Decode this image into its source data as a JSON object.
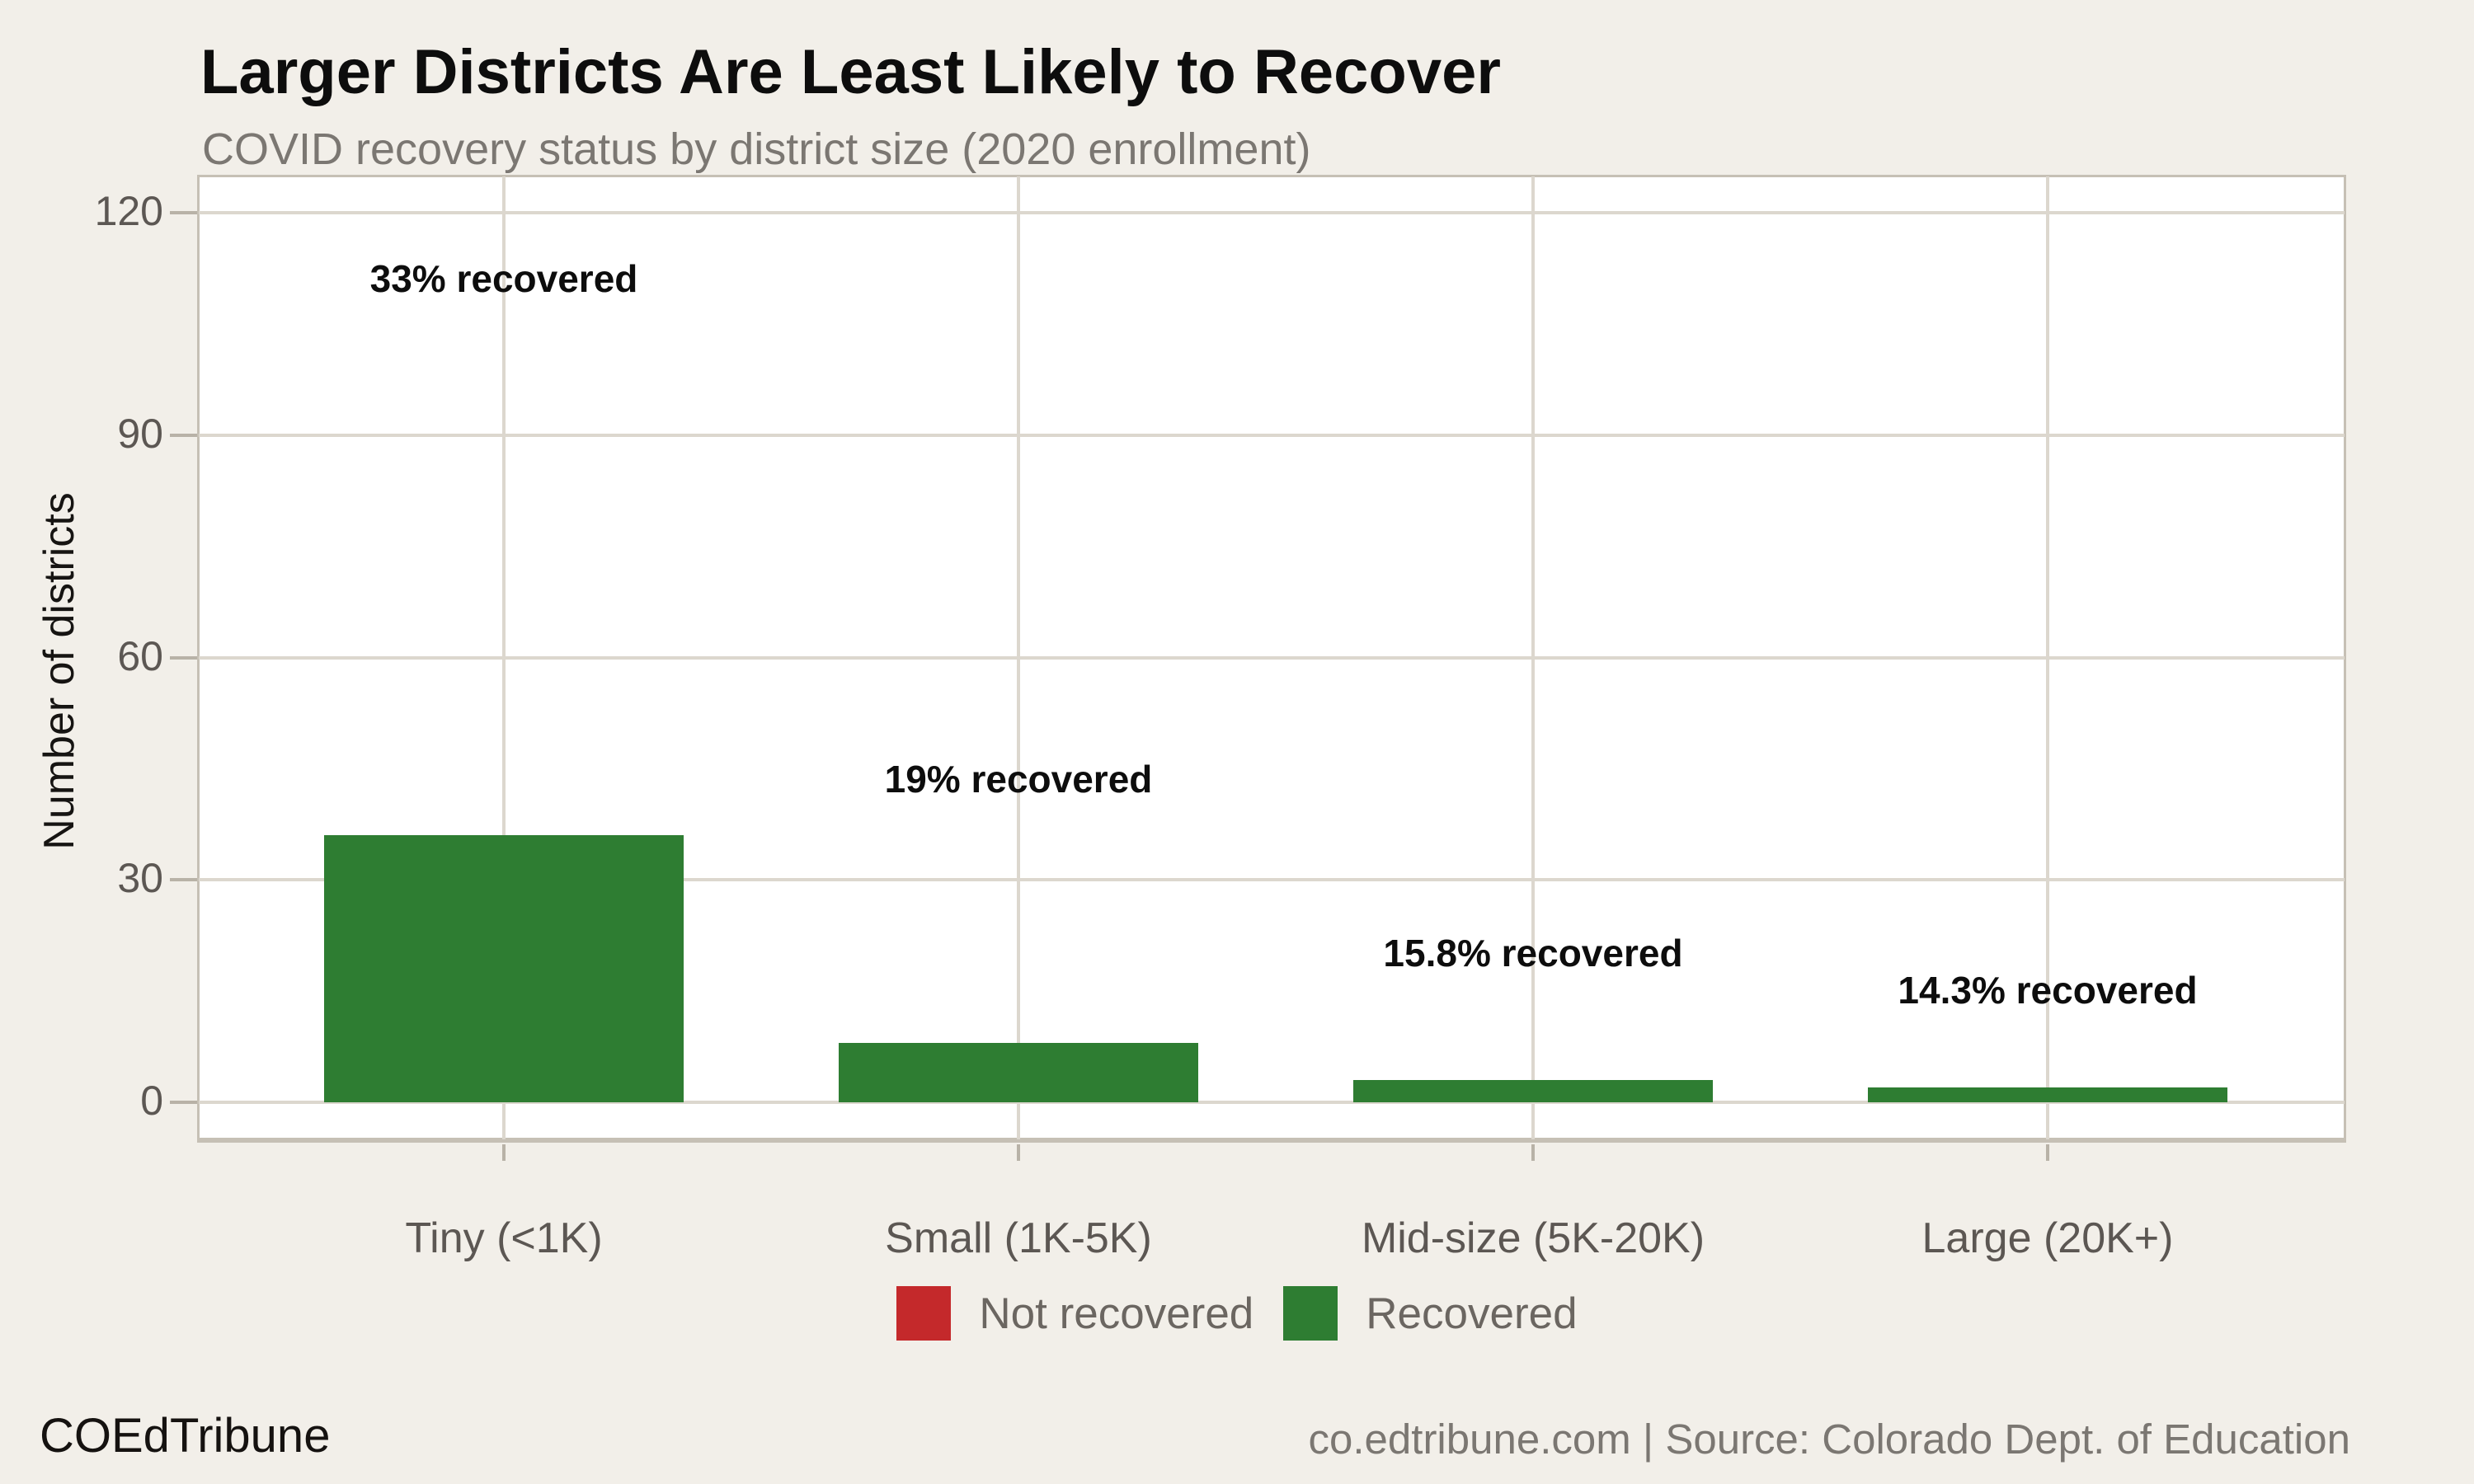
{
  "header": {
    "title": "Larger Districts Are Least Likely to Recover",
    "subtitle": "COVID recovery status by district size (2020 enrollment)"
  },
  "chart_data": {
    "type": "bar",
    "title": "Larger Districts Are Least Likely to Recover",
    "subtitle": "COVID recovery status by district size (2020 enrollment)",
    "categories": [
      "Tiny (<1K)",
      "Small (1K-5K)",
      "Mid-size (5K-20K)",
      "Large (20K+)"
    ],
    "series": [
      {
        "name": "Recovered",
        "color": "#2e7d32",
        "values": [
          36,
          8,
          3,
          2
        ]
      }
    ],
    "legend": [
      {
        "label": "Not recovered",
        "color": "#c4292b"
      },
      {
        "label": "Recovered",
        "color": "#2e7d32"
      }
    ],
    "legend_position": "bottom",
    "xlabel": "",
    "ylabel": "Number of districts",
    "yticks": [
      0,
      30,
      60,
      90,
      120
    ],
    "ylim": [
      0,
      126
    ],
    "grid": true,
    "annotations": [
      {
        "text": "33% recovered",
        "category_index": 0,
        "y": 111
      },
      {
        "text": "19% recovered",
        "category_index": 1,
        "y": 43.5
      },
      {
        "text": "15.8% recovered",
        "category_index": 2,
        "y": 20
      },
      {
        "text": "14.3% recovered",
        "category_index": 3,
        "y": 15
      }
    ]
  },
  "footer": {
    "brand": "COEdTribune",
    "source": "co.edtribune.com | Source: Colorado Dept. of Education"
  },
  "colors": {
    "background": "#f2efe9",
    "panel": "#ffffff",
    "gridline": "#dcd7ce",
    "axis_line": "#c6c0b5",
    "tick": "#b8b2a7",
    "recovered_green": "#2e7d32",
    "not_recovered_red": "#c4292b",
    "text_dark": "#0d0d0d",
    "text_gray": "#5c5753",
    "text_light_gray": "#7b7772"
  }
}
